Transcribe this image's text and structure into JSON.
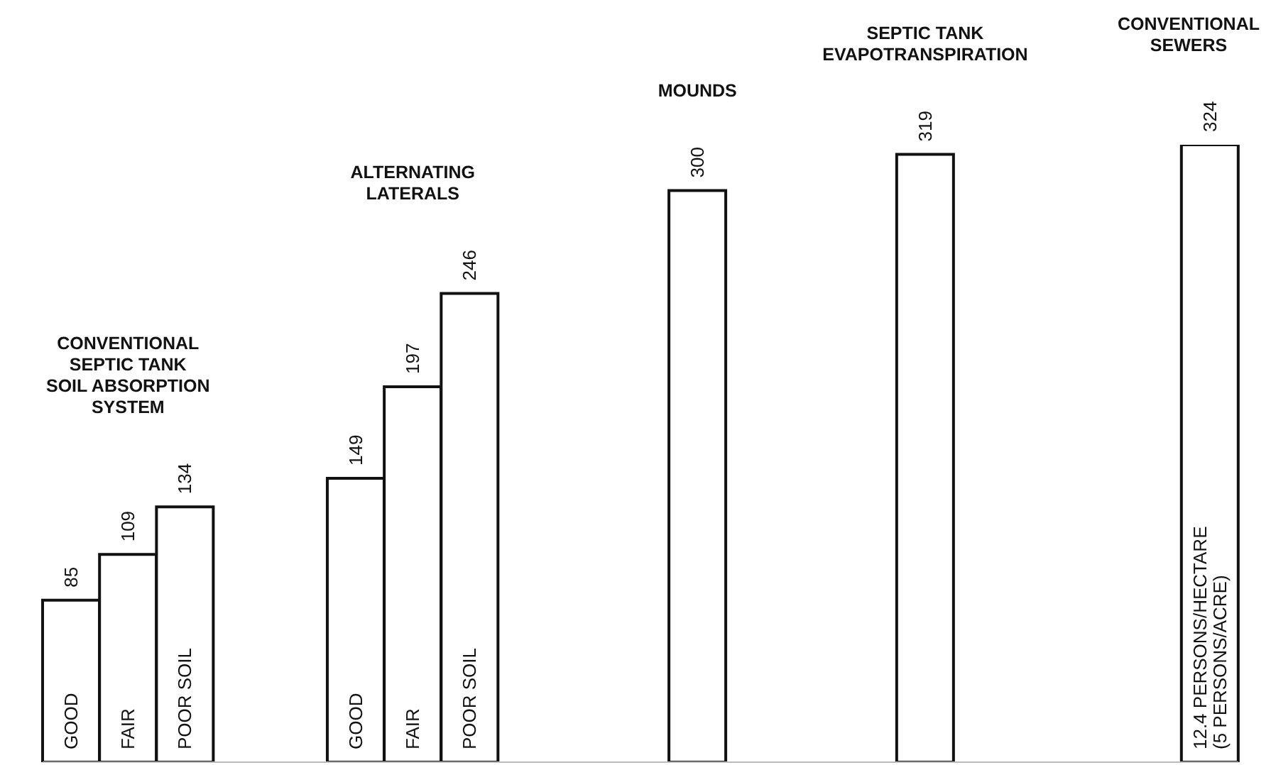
{
  "chart_data": {
    "type": "bar",
    "categories": [
      "GOOD",
      "FAIR",
      "POOR SOIL",
      null,
      null,
      "GOOD",
      "FAIR",
      "POOR SOIL",
      null,
      null,
      null,
      null,
      null,
      null,
      null,
      null,
      null,
      null,
      null,
      null,
      "12.4 PERSONS/HECTARE\n(5 PERSONS/ACRE)"
    ],
    "values": [
      85,
      109,
      134,
      null,
      null,
      149,
      197,
      246,
      null,
      null,
      null,
      300,
      null,
      null,
      null,
      319,
      null,
      null,
      null,
      null,
      324
    ],
    "color": "#ffffff",
    "data_labels": true,
    "annotations": [
      "CONVENTIONAL\nSEPTIC TANK\nSOIL ABSORPTION\nSYSTEM",
      "ALTERNATING\nLATERALS",
      "MOUNDS",
      "SEPTIC TANK\nEVAPOTRANSPIRATION",
      "CONVENTIONAL\nSEWERS"
    ]
  }
}
